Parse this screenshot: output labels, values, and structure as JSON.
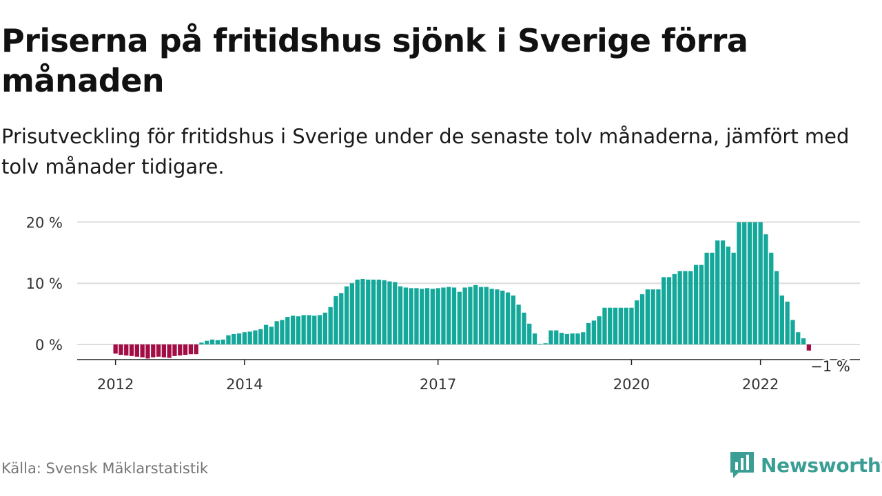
{
  "title": "Priserna på fritidshus sjönk i Sverige förra månaden",
  "subtitle": "Prisutveckling för fritidshus i Sverige under de senaste tolv månaderna, jämfört med tolv månader tidigare.",
  "source": "Källa: Svensk Mäklarstatistik",
  "brand": {
    "name": "Newsworthy",
    "logo_icon": "bar-chart-speech-bubble-icon",
    "color": "#3a9e95"
  },
  "colors": {
    "positive": "#14a89a",
    "negative": "#a30d45",
    "grid": "#dddddd",
    "axis": "#222222"
  },
  "chart_data": {
    "type": "bar",
    "title": "Priserna på fritidshus sjönk i Sverige förra månaden",
    "subtitle": "Prisutveckling för fritidshus i Sverige under de senaste tolv månaderna, jämfört med tolv månader tidigare.",
    "xlabel": "",
    "ylabel": "",
    "unit": "%",
    "ylim": [
      -2.5,
      20
    ],
    "yticks": [
      0,
      10,
      20
    ],
    "ytick_labels": [
      "0 %",
      "10 %",
      "20 %"
    ],
    "grid": true,
    "legend": "none",
    "start": "2012-01",
    "xticks": [
      {
        "label": "2012",
        "month": "2012-01"
      },
      {
        "label": "2014",
        "month": "2014-01"
      },
      {
        "label": "2017",
        "month": "2017-01"
      },
      {
        "label": "2020",
        "month": "2020-01"
      },
      {
        "label": "2022",
        "month": "2022-01"
      }
    ],
    "annotation": {
      "label": "−1 %",
      "month": "2023-02",
      "value": -1
    },
    "values": [
      -1.5,
      -1.7,
      -1.8,
      -1.9,
      -2.0,
      -2.1,
      -2.3,
      -2.1,
      -2.0,
      -2.1,
      -2.2,
      -1.9,
      -1.8,
      -1.7,
      -1.6,
      -1.6,
      0.3,
      0.6,
      0.8,
      0.7,
      0.8,
      1.5,
      1.7,
      1.8,
      2.0,
      2.1,
      2.3,
      2.5,
      3.2,
      2.9,
      3.8,
      4.0,
      4.5,
      4.7,
      4.6,
      4.8,
      4.8,
      4.7,
      4.8,
      5.2,
      6.1,
      7.9,
      8.4,
      9.5,
      10.0,
      10.6,
      10.7,
      10.6,
      10.6,
      10.6,
      10.5,
      10.3,
      10.2,
      9.5,
      9.3,
      9.2,
      9.2,
      9.1,
      9.2,
      9.1,
      9.2,
      9.3,
      9.4,
      9.3,
      8.6,
      9.3,
      9.4,
      9.7,
      9.4,
      9.4,
      9.1,
      9.0,
      8.8,
      8.5,
      8.0,
      6.5,
      5.2,
      3.4,
      1.8,
      0.1,
      0.2,
      2.3,
      2.3,
      1.9,
      1.7,
      1.8,
      1.8,
      2.0,
      3.5,
      3.9,
      4.6,
      6.0,
      6.0,
      6.0,
      6.0,
      6.0,
      6.0,
      7.2,
      8.2,
      9.0,
      9.0,
      9.0,
      11.0,
      11.0,
      11.5,
      12.0,
      12.0,
      12.0,
      13.0,
      13.0,
      15.0,
      15.0,
      17.0,
      17.0,
      16.0,
      15.0,
      20.0,
      20.0,
      20.0,
      20.0,
      20.0,
      18.0,
      15.0,
      12.0,
      8.0,
      7.0,
      4.0,
      2.0,
      1.0,
      -1.0
    ]
  }
}
